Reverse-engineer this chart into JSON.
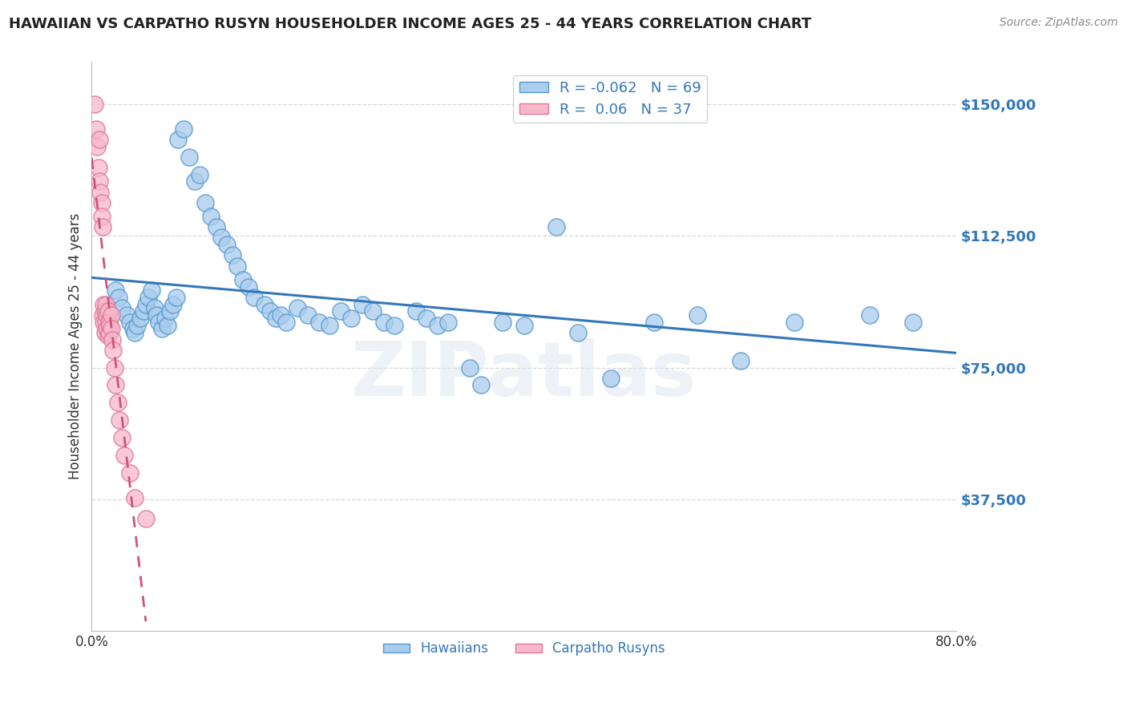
{
  "title": "HAWAIIAN VS CARPATHO RUSYN HOUSEHOLDER INCOME AGES 25 - 44 YEARS CORRELATION CHART",
  "source": "Source: ZipAtlas.com",
  "ylabel": "Householder Income Ages 25 - 44 years",
  "y_ticks": [
    37500,
    75000,
    112500,
    150000
  ],
  "y_tick_labels": [
    "$37,500",
    "$75,000",
    "$112,500",
    "$150,000"
  ],
  "xlim": [
    0.0,
    0.8
  ],
  "ylim": [
    0,
    162000
  ],
  "hawaiian_R": -0.062,
  "hawaiian_N": 69,
  "carpatho_R": 0.06,
  "carpatho_N": 37,
  "bg_color": "#ffffff",
  "grid_color": "#d8d8d8",
  "hawaiian_face": "#aaccee",
  "hawaiian_edge": "#5599cc",
  "hawaiian_line": "#3377bb",
  "carpatho_face": "#f8b8cc",
  "carpatho_edge": "#dd7799",
  "carpatho_line": "#cc5577",
  "title_color": "#222222",
  "tick_color_right": "#3377bb",
  "legend_label_h": "Hawaiians",
  "legend_label_c": "Carpatho Rusyns",
  "watermark": "ZIPatlas",
  "hawaiian_x": [
    0.022,
    0.025,
    0.028,
    0.032,
    0.035,
    0.038,
    0.04,
    0.042,
    0.045,
    0.048,
    0.05,
    0.052,
    0.055,
    0.058,
    0.06,
    0.062,
    0.065,
    0.068,
    0.07,
    0.072,
    0.075,
    0.078,
    0.08,
    0.085,
    0.09,
    0.095,
    0.1,
    0.105,
    0.11,
    0.115,
    0.12,
    0.125,
    0.13,
    0.135,
    0.14,
    0.145,
    0.15,
    0.16,
    0.165,
    0.17,
    0.175,
    0.18,
    0.19,
    0.2,
    0.21,
    0.22,
    0.23,
    0.24,
    0.25,
    0.26,
    0.27,
    0.28,
    0.3,
    0.31,
    0.32,
    0.33,
    0.35,
    0.36,
    0.38,
    0.4,
    0.43,
    0.45,
    0.48,
    0.52,
    0.56,
    0.6,
    0.65,
    0.72,
    0.76
  ],
  "hawaiian_y": [
    97000,
    95000,
    92000,
    90000,
    88000,
    86000,
    85000,
    87000,
    89000,
    91000,
    93000,
    95000,
    97000,
    92000,
    90000,
    88000,
    86000,
    89000,
    87000,
    91000,
    93000,
    95000,
    140000,
    143000,
    135000,
    128000,
    130000,
    122000,
    118000,
    115000,
    112000,
    110000,
    107000,
    104000,
    100000,
    98000,
    95000,
    93000,
    91000,
    89000,
    90000,
    88000,
    92000,
    90000,
    88000,
    87000,
    91000,
    89000,
    93000,
    91000,
    88000,
    87000,
    91000,
    89000,
    87000,
    88000,
    75000,
    70000,
    88000,
    87000,
    115000,
    85000,
    72000,
    88000,
    90000,
    77000,
    88000,
    90000,
    88000
  ],
  "carpatho_x": [
    0.003,
    0.004,
    0.005,
    0.006,
    0.007,
    0.007,
    0.008,
    0.009,
    0.009,
    0.01,
    0.01,
    0.011,
    0.011,
    0.012,
    0.012,
    0.013,
    0.013,
    0.014,
    0.014,
    0.015,
    0.015,
    0.016,
    0.016,
    0.017,
    0.018,
    0.018,
    0.019,
    0.02,
    0.021,
    0.022,
    0.024,
    0.026,
    0.028,
    0.03,
    0.035,
    0.04,
    0.05
  ],
  "carpatho_y": [
    150000,
    143000,
    138000,
    132000,
    140000,
    128000,
    125000,
    122000,
    118000,
    115000,
    90000,
    93000,
    88000,
    91000,
    85000,
    88000,
    93000,
    86000,
    90000,
    84000,
    91000,
    88000,
    85000,
    87000,
    90000,
    86000,
    83000,
    80000,
    75000,
    70000,
    65000,
    60000,
    55000,
    50000,
    45000,
    38000,
    32000
  ]
}
